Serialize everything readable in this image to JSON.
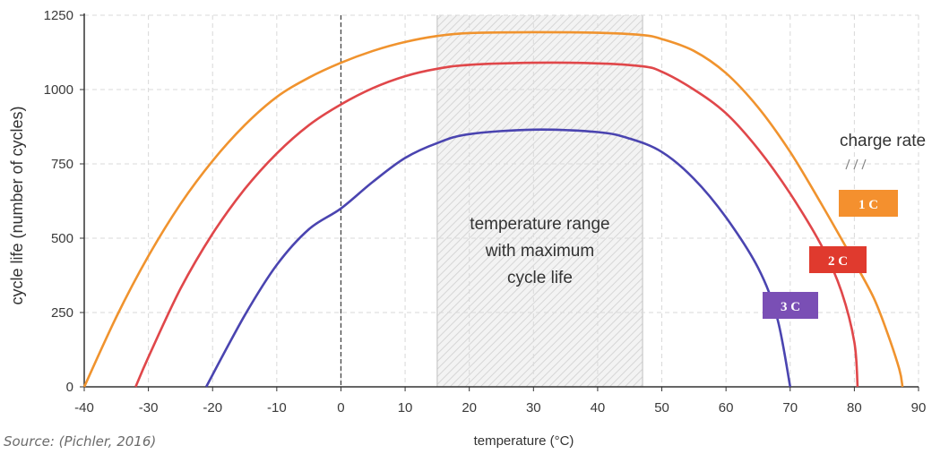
{
  "chart_data": {
    "type": "line",
    "ylabel": "cycle life (number of cycles)",
    "xlabel": "temperature (°C)",
    "xlim": [
      -40,
      90
    ],
    "ylim": [
      0,
      1250
    ],
    "x_ticks": [
      -40,
      -30,
      -20,
      -10,
      0,
      10,
      20,
      30,
      40,
      50,
      60,
      70,
      80,
      90
    ],
    "y_ticks": [
      0,
      250,
      500,
      750,
      1000,
      1250
    ],
    "grid": true,
    "reference_line_x": 0,
    "shaded_range": {
      "x": [
        15,
        47
      ],
      "label": [
        "temperature range",
        "with maximum",
        "cycle life"
      ]
    },
    "legend_title": "charge rate",
    "series": [
      {
        "name": "1 C",
        "color": "#f0932e",
        "label_color": "#f4902e",
        "points": [
          [
            -40,
            0
          ],
          [
            -35,
            235
          ],
          [
            -30,
            440
          ],
          [
            -25,
            615
          ],
          [
            -20,
            760
          ],
          [
            -15,
            880
          ],
          [
            -10,
            975
          ],
          [
            -5,
            1040
          ],
          [
            0,
            1090
          ],
          [
            5,
            1130
          ],
          [
            10,
            1160
          ],
          [
            15,
            1180
          ],
          [
            20,
            1190
          ],
          [
            30,
            1193
          ],
          [
            40,
            1191
          ],
          [
            47,
            1183
          ],
          [
            50,
            1170
          ],
          [
            55,
            1130
          ],
          [
            60,
            1055
          ],
          [
            65,
            940
          ],
          [
            70,
            790
          ],
          [
            75,
            610
          ],
          [
            80,
            420
          ],
          [
            83,
            300
          ],
          [
            85,
            190
          ],
          [
            87,
            60
          ],
          [
            87.5,
            0
          ]
        ]
      },
      {
        "name": "2 C",
        "color": "#e0474a",
        "label_color": "#e03a2e",
        "points": [
          [
            -32,
            0
          ],
          [
            -30,
            100
          ],
          [
            -25,
            330
          ],
          [
            -20,
            515
          ],
          [
            -15,
            665
          ],
          [
            -10,
            785
          ],
          [
            -5,
            880
          ],
          [
            0,
            950
          ],
          [
            5,
            1005
          ],
          [
            10,
            1045
          ],
          [
            15,
            1070
          ],
          [
            20,
            1083
          ],
          [
            30,
            1090
          ],
          [
            40,
            1088
          ],
          [
            47,
            1078
          ],
          [
            50,
            1060
          ],
          [
            55,
            1000
          ],
          [
            60,
            920
          ],
          [
            65,
            800
          ],
          [
            70,
            650
          ],
          [
            75,
            470
          ],
          [
            78,
            320
          ],
          [
            80,
            150
          ],
          [
            80.5,
            0
          ]
        ]
      },
      {
        "name": "3 C",
        "color": "#4a44b0",
        "label_color": "#7a4fb5",
        "points": [
          [
            -21,
            0
          ],
          [
            -15,
            240
          ],
          [
            -10,
            410
          ],
          [
            -5,
            530
          ],
          [
            0,
            600
          ],
          [
            5,
            690
          ],
          [
            10,
            770
          ],
          [
            15,
            820
          ],
          [
            20,
            850
          ],
          [
            30,
            865
          ],
          [
            40,
            857
          ],
          [
            45,
            835
          ],
          [
            50,
            790
          ],
          [
            55,
            700
          ],
          [
            60,
            570
          ],
          [
            65,
            400
          ],
          [
            68,
            230
          ],
          [
            70,
            0
          ]
        ]
      }
    ]
  },
  "source": "Source: (Pichler, 2016)"
}
